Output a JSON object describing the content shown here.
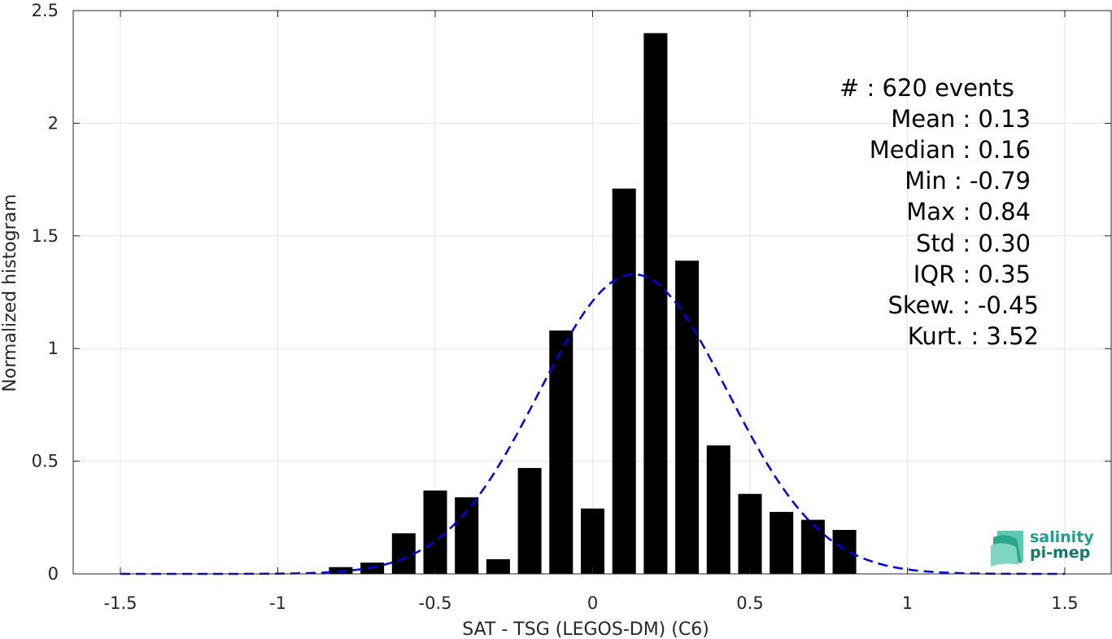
{
  "chart_data": {
    "type": "bar",
    "xlabel": "SAT - TSG (LEGOS-DM) (C6)",
    "ylabel": "Normalized histogram",
    "xlim": [
      -1.65,
      1.65
    ],
    "ylim": [
      0,
      2.5
    ],
    "x_ticks": [
      -1.5,
      -1,
      -0.5,
      0,
      0.5,
      1,
      1.5
    ],
    "x_tick_labels": [
      "-1.5",
      "-1",
      "-0.5",
      "0",
      "0.5",
      "1",
      "1.5"
    ],
    "y_ticks": [
      0,
      0.5,
      1,
      1.5,
      2,
      2.5
    ],
    "y_tick_labels": [
      "0",
      "0.5",
      "1",
      "1.5",
      "2",
      "2.5"
    ],
    "grid": true,
    "bar_width": 0.075,
    "bars": [
      {
        "x": -0.8,
        "y": 0.03
      },
      {
        "x": -0.7,
        "y": 0.05
      },
      {
        "x": -0.6,
        "y": 0.18
      },
      {
        "x": -0.5,
        "y": 0.37
      },
      {
        "x": -0.4,
        "y": 0.34
      },
      {
        "x": -0.3,
        "y": 0.065
      },
      {
        "x": -0.2,
        "y": 0.47
      },
      {
        "x": -0.1,
        "y": 1.08
      },
      {
        "x": 0.0,
        "y": 0.29
      },
      {
        "x": 0.1,
        "y": 1.71
      },
      {
        "x": 0.2,
        "y": 2.4
      },
      {
        "x": 0.3,
        "y": 1.39
      },
      {
        "x": 0.4,
        "y": 0.57
      },
      {
        "x": 0.5,
        "y": 0.355
      },
      {
        "x": 0.6,
        "y": 0.275
      },
      {
        "x": 0.7,
        "y": 0.24
      },
      {
        "x": 0.8,
        "y": 0.195
      }
    ],
    "fit_curve": {
      "style": "dashed",
      "color": "#0000e6",
      "mean": 0.13,
      "std": 0.3,
      "x_range": [
        -1.5,
        1.5
      ]
    },
    "bar_color": "#000000"
  },
  "stats": {
    "lines": [
      "#  : 620 events",
      "Mean : 0.13",
      "Median : 0.16",
      "Min : -0.79",
      "Max : 0.84",
      "Std : 0.30",
      "IQR : 0.35",
      "Skew. : -0.45",
      "Kurt. : 3.52"
    ]
  },
  "logo": {
    "line1": "salinity",
    "line2": "pi-mep",
    "color_primary": "#1fa08a",
    "color_secondary": "#137a6a"
  }
}
